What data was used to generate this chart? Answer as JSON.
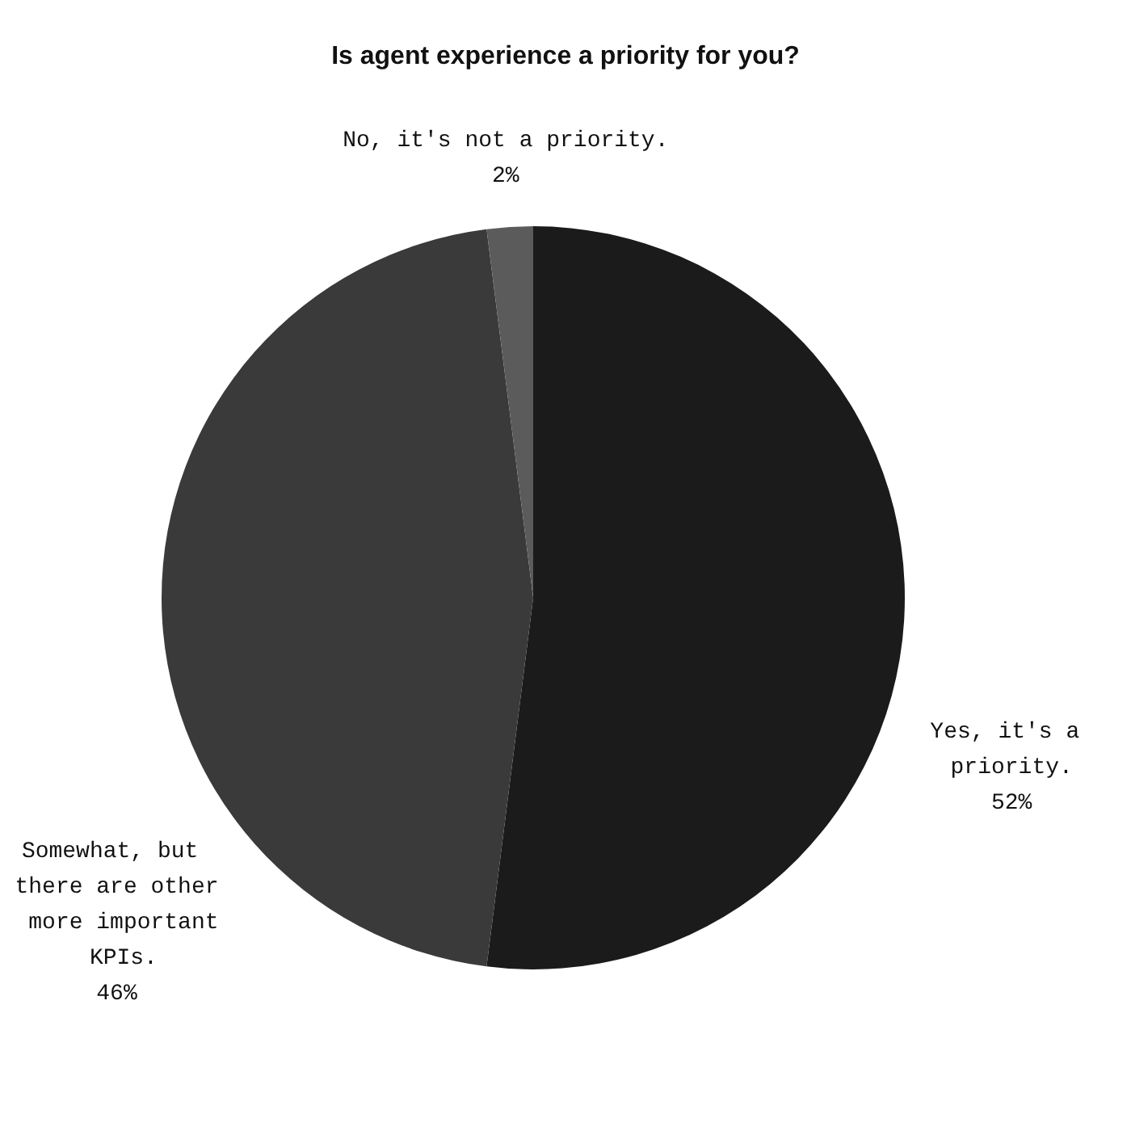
{
  "chart_data": {
    "type": "pie",
    "title": "Is agent experience a priority for you?",
    "categories": [
      "Yes, it's a priority.",
      "Somewhat, but there are other more important KPIs.",
      "No, it's not a priority."
    ],
    "values": [
      52,
      46,
      2
    ],
    "colors": [
      "#1b1b1b",
      "#3a3a3a",
      "#5b5b5b"
    ],
    "value_labels": [
      "52%",
      "46%",
      "2%"
    ]
  }
}
